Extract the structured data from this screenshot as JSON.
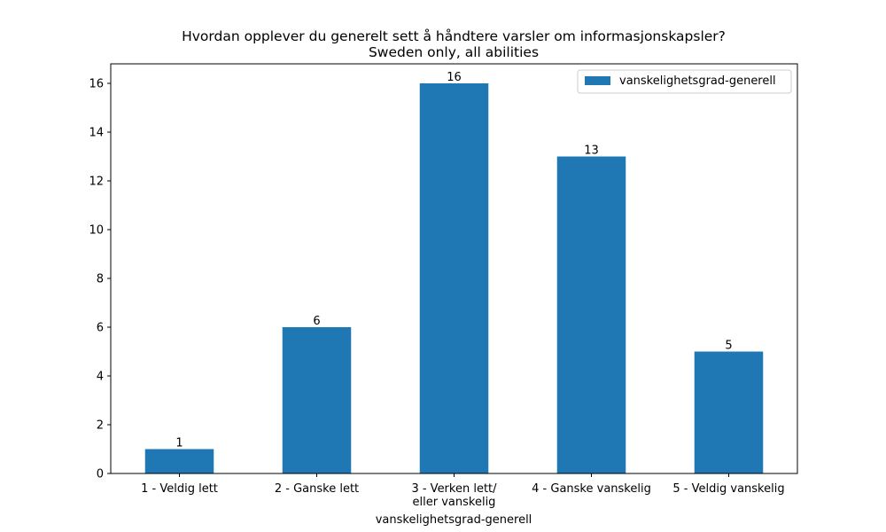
{
  "chart_data": {
    "type": "bar",
    "title": "Hvordan opplever du generelt sett å håndtere varsler om informasjonskapsler?",
    "subtitle": "Sweden only, all abilities",
    "categories": [
      [
        "1 - Veldig lett"
      ],
      [
        "2 - Ganske lett"
      ],
      [
        "3 - Verken lett/",
        "eller vanskelig"
      ],
      [
        "4 - Ganske vanskelig"
      ],
      [
        "5 - Veldig vanskelig"
      ]
    ],
    "series": [
      {
        "name": "vanskelighetsgrad-generell",
        "values": [
          1,
          6,
          16,
          13,
          5
        ],
        "color": "#1f77b4"
      }
    ],
    "xlabel": "vanskelighetsgrad-generell",
    "ylabel": "",
    "ylim": [
      0,
      16.8
    ],
    "yticks": [
      0,
      2,
      4,
      6,
      8,
      10,
      12,
      14,
      16
    ],
    "grid": false,
    "legend_position": "top-right"
  }
}
